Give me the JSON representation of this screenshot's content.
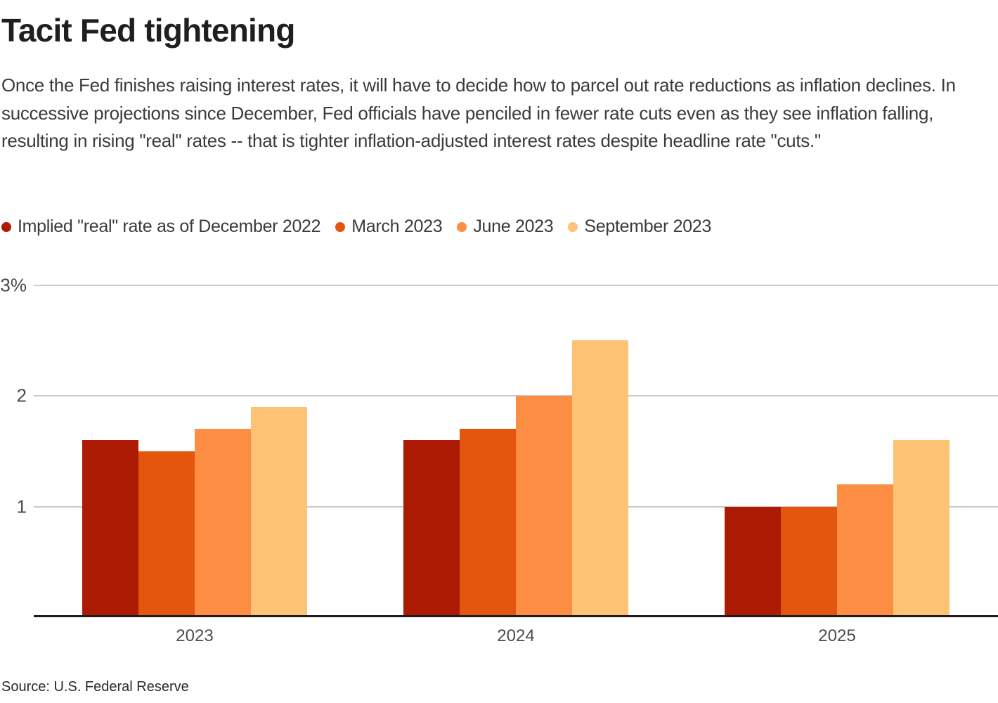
{
  "header": {
    "title": "Tacit Fed tightening",
    "subtitle": "Once the Fed finishes raising interest rates, it will have to decide how to parcel out rate reductions as inflation declines. In successive projections since December, Fed officials have penciled in fewer rate cuts even as they see inflation falling, resulting in rising \"real\" rates -- that is tighter inflation-adjusted interest rates despite headline rate \"cuts.\""
  },
  "chart_data": {
    "type": "bar",
    "title": "Tacit Fed tightening",
    "categories": [
      "2023",
      "2024",
      "2025"
    ],
    "series": [
      {
        "name": "Implied \"real\" rate as of December 2022",
        "color": "#AC1A03",
        "values": [
          1.6,
          1.6,
          1.0
        ]
      },
      {
        "name": "March 2023",
        "color": "#E4560E",
        "values": [
          1.5,
          1.7,
          1.0
        ]
      },
      {
        "name": "June 2023",
        "color": "#FC8D42",
        "values": [
          1.7,
          2.0,
          1.2
        ]
      },
      {
        "name": "September 2023",
        "color": "#FEC274",
        "values": [
          1.9,
          2.5,
          1.6
        ]
      }
    ],
    "xlabel": "",
    "ylabel": "",
    "ylim": [
      0,
      3
    ],
    "yticks": [
      {
        "value": 3,
        "label": "3%"
      },
      {
        "value": 2,
        "label": "2"
      },
      {
        "value": 1,
        "label": "1"
      }
    ],
    "grid": true,
    "legend_position": "top-left",
    "units": "percent"
  },
  "footer": {
    "source": "Source: U.S. Federal Reserve"
  },
  "colors": {
    "title_text": "#1F1F1F",
    "body_text": "#3B3B3B",
    "axis_text": "#4C4C4C",
    "gridline": "#C9C9C9",
    "axis_line": "#1C1C20",
    "background": "#FFFFFF"
  }
}
